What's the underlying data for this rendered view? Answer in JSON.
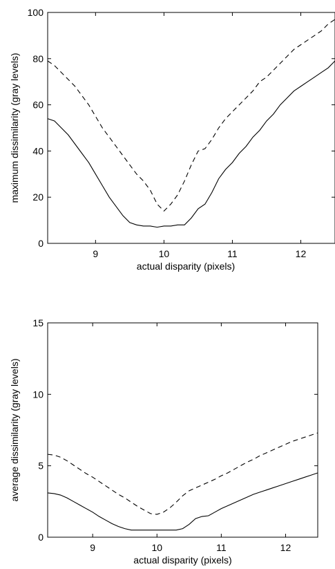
{
  "chart_data": [
    {
      "type": "line",
      "title": "",
      "xlabel": "actual disparity (pixels)",
      "ylabel": "maximum dissimilarity (gray levels)",
      "xlim": [
        8.3,
        12.5
      ],
      "ylim": [
        0,
        100
      ],
      "xticks": [
        9,
        10,
        11,
        12
      ],
      "yticks": [
        0,
        20,
        40,
        60,
        80,
        100
      ],
      "grid": false,
      "series": [
        {
          "style": "solid",
          "x": [
            8.3,
            8.4,
            8.5,
            8.6,
            8.7,
            8.8,
            8.9,
            9.0,
            9.1,
            9.2,
            9.3,
            9.4,
            9.5,
            9.6,
            9.7,
            9.8,
            9.9,
            10.0,
            10.1,
            10.2,
            10.3,
            10.4,
            10.5,
            10.6,
            10.7,
            10.8,
            10.9,
            11.0,
            11.1,
            11.2,
            11.3,
            11.4,
            11.5,
            11.6,
            11.7,
            11.8,
            11.9,
            12.0,
            12.1,
            12.2,
            12.3,
            12.4,
            12.5
          ],
          "values": [
            54,
            53,
            50,
            47,
            43,
            39,
            35,
            30,
            25,
            20,
            16,
            12,
            9,
            8,
            7.5,
            7.5,
            7,
            7.5,
            7.5,
            8,
            8,
            11,
            15,
            17,
            22,
            28,
            32,
            35,
            39,
            42,
            46,
            49,
            53,
            56,
            60,
            63,
            66,
            68,
            70,
            72,
            74,
            76,
            79
          ]
        },
        {
          "style": "dashed",
          "x": [
            8.3,
            8.4,
            8.5,
            8.6,
            8.7,
            8.8,
            8.9,
            9.0,
            9.1,
            9.2,
            9.3,
            9.4,
            9.5,
            9.6,
            9.7,
            9.8,
            9.9,
            10.0,
            10.1,
            10.2,
            10.3,
            10.4,
            10.5,
            10.6,
            10.7,
            10.8,
            10.9,
            11.0,
            11.1,
            11.2,
            11.3,
            11.4,
            11.5,
            11.6,
            11.7,
            11.8,
            11.9,
            12.0,
            12.1,
            12.2,
            12.3,
            12.4,
            12.5
          ],
          "values": [
            79,
            77,
            74,
            71,
            68,
            64,
            60,
            55,
            50,
            46,
            42,
            38,
            34,
            30,
            27,
            23,
            17,
            14,
            17,
            21,
            27,
            34,
            40,
            41,
            45,
            50,
            54,
            57,
            60,
            63,
            66,
            70,
            72,
            75,
            78,
            81,
            84,
            86,
            88,
            90,
            92,
            95,
            97
          ]
        }
      ]
    },
    {
      "type": "line",
      "title": "",
      "xlabel": "actual disparity (pixels)",
      "ylabel": "average dissimilarity (gray levels)",
      "xlim": [
        8.3,
        12.5
      ],
      "ylim": [
        0,
        15
      ],
      "xticks": [
        9,
        10,
        11,
        12
      ],
      "yticks": [
        0,
        5,
        10,
        15
      ],
      "grid": false,
      "series": [
        {
          "style": "solid",
          "x": [
            8.3,
            8.4,
            8.5,
            8.6,
            8.7,
            8.8,
            8.9,
            9.0,
            9.1,
            9.2,
            9.3,
            9.4,
            9.5,
            9.6,
            9.7,
            9.8,
            9.9,
            10.0,
            10.1,
            10.2,
            10.3,
            10.4,
            10.5,
            10.6,
            10.7,
            10.8,
            10.9,
            11.0,
            11.1,
            11.2,
            11.3,
            11.4,
            11.5,
            11.6,
            11.7,
            11.8,
            11.9,
            12.0,
            12.1,
            12.2,
            12.3,
            12.4,
            12.5
          ],
          "values": [
            3.1,
            3.05,
            2.95,
            2.75,
            2.5,
            2.25,
            2.0,
            1.75,
            1.45,
            1.2,
            0.95,
            0.75,
            0.6,
            0.5,
            0.5,
            0.5,
            0.5,
            0.5,
            0.5,
            0.5,
            0.5,
            0.6,
            0.9,
            1.3,
            1.45,
            1.5,
            1.75,
            2.0,
            2.2,
            2.4,
            2.6,
            2.8,
            3.0,
            3.15,
            3.3,
            3.45,
            3.6,
            3.75,
            3.9,
            4.05,
            4.2,
            4.35,
            4.5
          ]
        },
        {
          "style": "dashed",
          "x": [
            8.3,
            8.4,
            8.5,
            8.6,
            8.7,
            8.8,
            8.9,
            9.0,
            9.1,
            9.2,
            9.3,
            9.4,
            9.5,
            9.6,
            9.7,
            9.8,
            9.9,
            10.0,
            10.1,
            10.2,
            10.3,
            10.4,
            10.5,
            10.6,
            10.7,
            10.8,
            10.9,
            11.0,
            11.1,
            11.2,
            11.3,
            11.4,
            11.5,
            11.6,
            11.7,
            11.8,
            11.9,
            12.0,
            12.1,
            12.2,
            12.3,
            12.4,
            12.5
          ],
          "values": [
            5.8,
            5.75,
            5.6,
            5.35,
            5.05,
            4.75,
            4.45,
            4.2,
            3.9,
            3.6,
            3.3,
            3.0,
            2.75,
            2.45,
            2.15,
            1.9,
            1.65,
            1.6,
            1.75,
            2.05,
            2.45,
            2.9,
            3.25,
            3.45,
            3.65,
            3.85,
            4.05,
            4.3,
            4.5,
            4.75,
            5.0,
            5.25,
            5.45,
            5.7,
            5.9,
            6.1,
            6.3,
            6.5,
            6.7,
            6.85,
            7.0,
            7.15,
            7.3
          ]
        }
      ]
    }
  ]
}
